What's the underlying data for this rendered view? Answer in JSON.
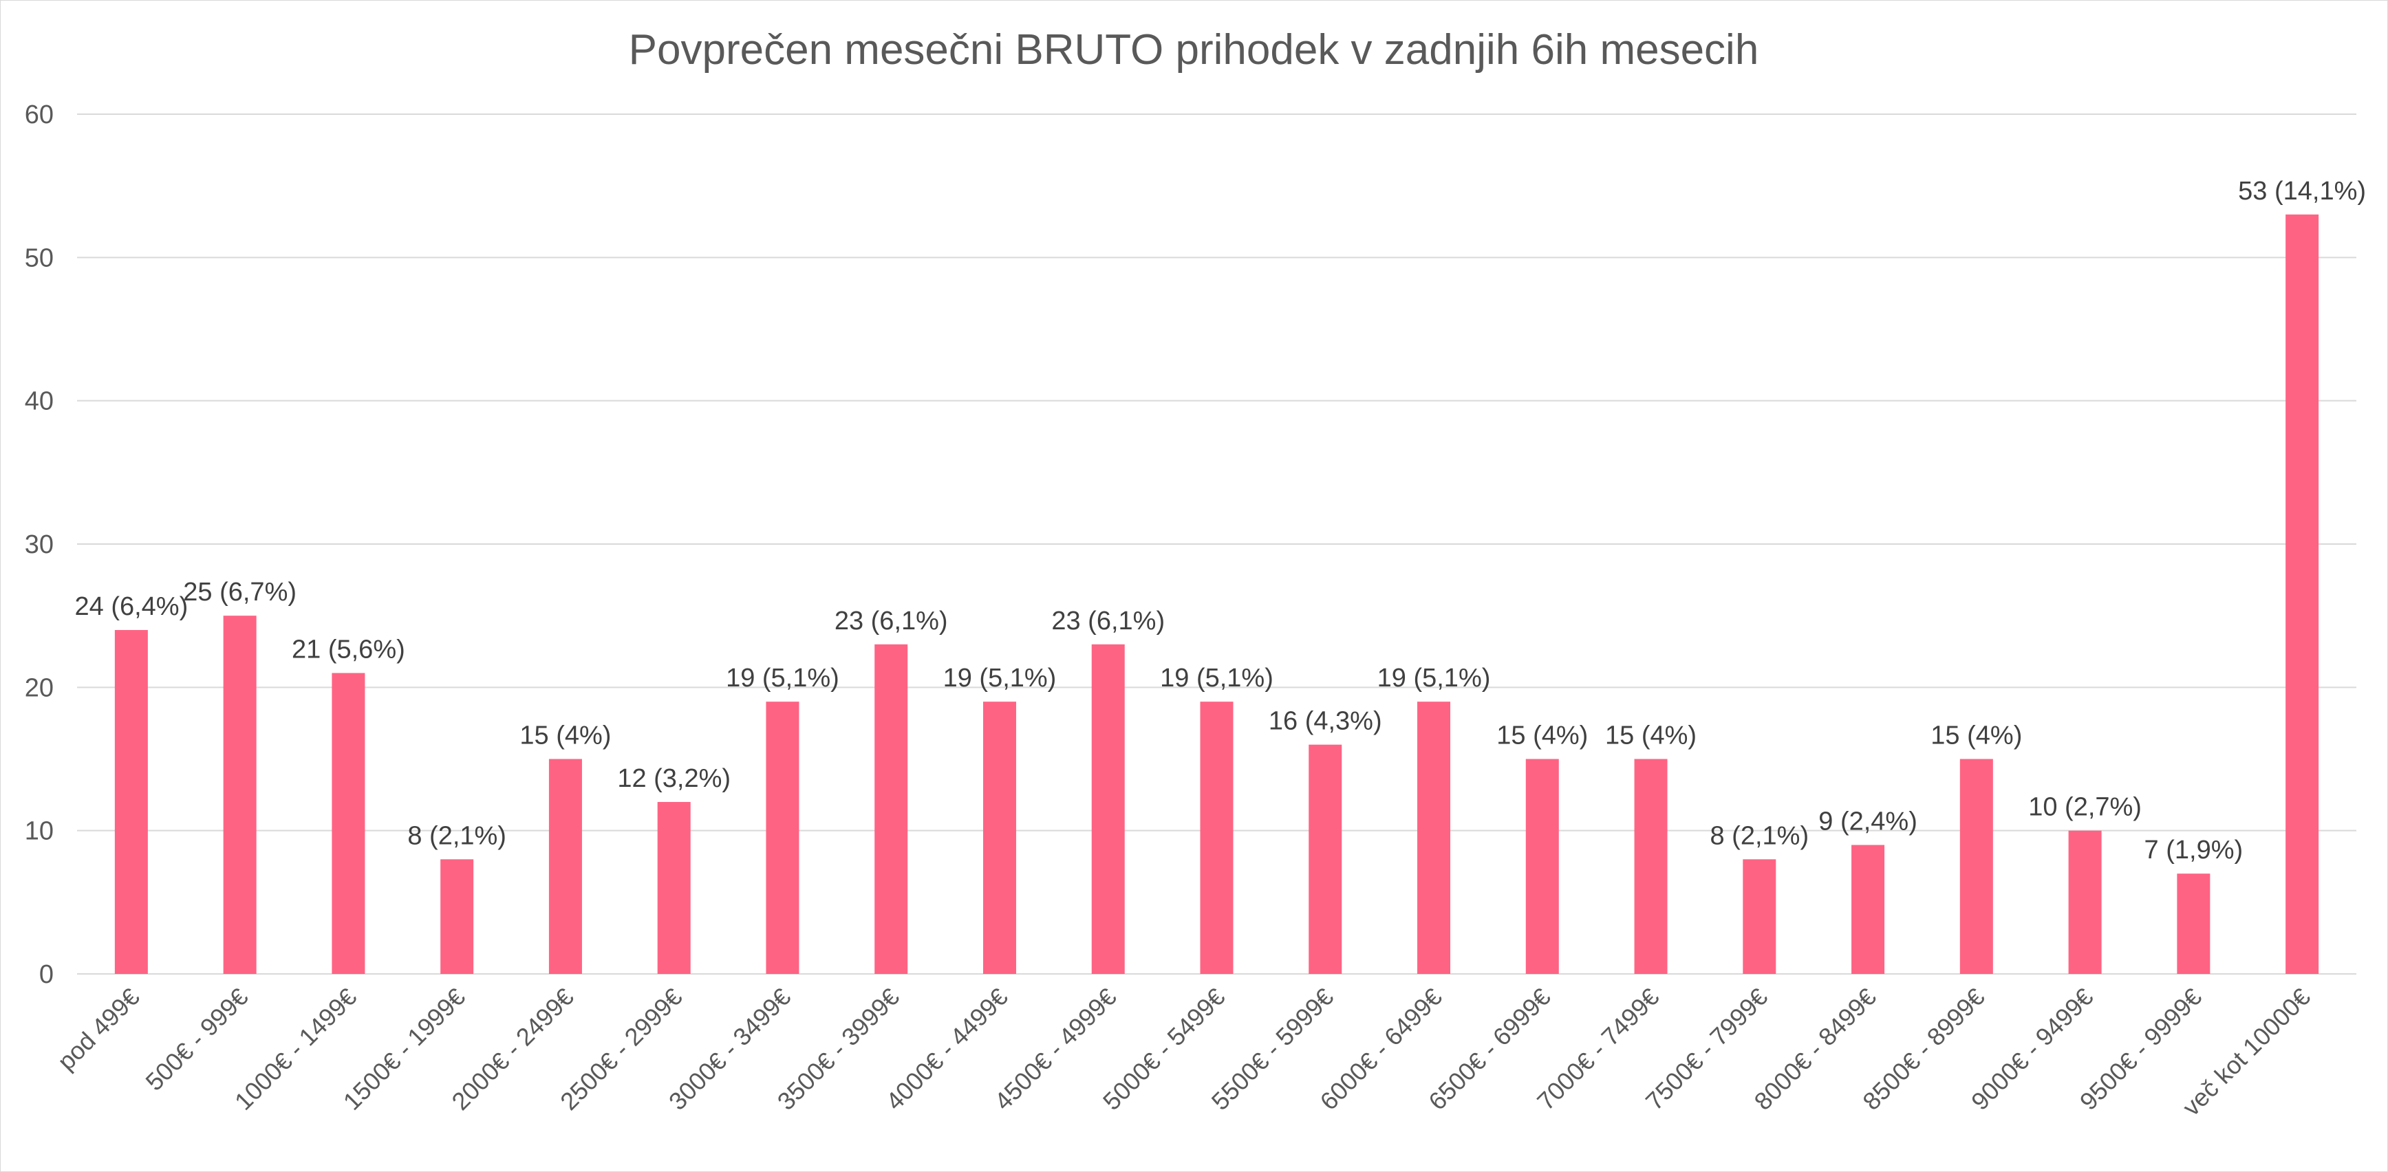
{
  "chart_data": {
    "type": "bar",
    "title": "Povprečen mesečni BRUTO prihodek v zadnjih 6ih mesecih",
    "xlabel": "",
    "ylabel": "",
    "ylim": [
      0,
      60
    ],
    "yticks": [
      0,
      10,
      20,
      30,
      40,
      50,
      60
    ],
    "grid": true,
    "legend": "none",
    "bar_color": "#FF6383",
    "categories": [
      "pod 499€",
      "500€ - 999€",
      "1000€ - 1499€",
      "1500€ - 1999€",
      "2000€ - 2499€",
      "2500€ - 2999€",
      "3000€ - 3499€",
      "3500€ - 3999€",
      "4000€ - 4499€",
      "4500€ - 4999€",
      "5000€ - 5499€",
      "5500€ - 5999€",
      "6000€ - 6499€",
      "6500€ - 6999€",
      "7000€ - 7499€",
      "7500€ - 7999€",
      "8000€ - 8499€",
      "8500€ - 8999€",
      "9000€ - 9499€",
      "9500€ - 9999€",
      "več kot 10000€"
    ],
    "values": [
      24,
      25,
      21,
      8,
      15,
      12,
      19,
      23,
      19,
      23,
      19,
      16,
      19,
      15,
      15,
      8,
      9,
      15,
      10,
      7,
      53
    ],
    "data_labels": [
      "24 (6,4%)",
      "25 (6,7%)",
      "21 (5,6%)",
      "8 (2,1%)",
      "15 (4%)",
      "12 (3,2%)",
      "19 (5,1%)",
      "23 (6,1%)",
      "19 (5,1%)",
      "23 (6,1%)",
      "19 (5,1%)",
      "16 (4,3%)",
      "19 (5,1%)",
      "15 (4%)",
      "15 (4%)",
      "8 (2,1%)",
      "9 (2,4%)",
      "15 (4%)",
      "10 (2,7%)",
      "7 (1,9%)",
      "53 (14,1%)"
    ]
  }
}
